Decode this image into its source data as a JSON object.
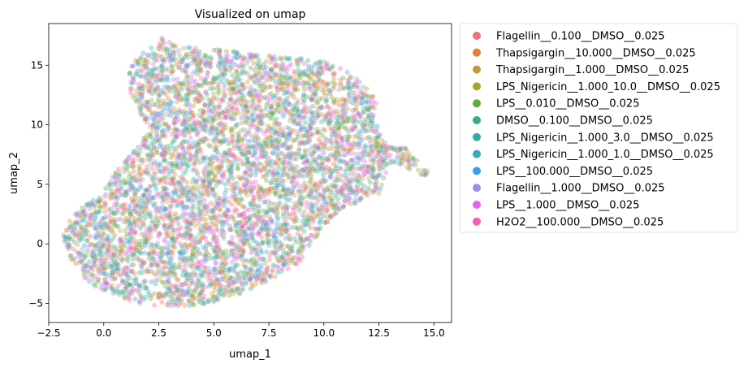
{
  "chart_data": {
    "type": "scatter",
    "title": "Visualized on umap",
    "xlabel": "umap_1",
    "ylabel": "umap_2",
    "xlim": [
      -2.5,
      15.8
    ],
    "ylim": [
      -6.6,
      18.5
    ],
    "xticks": [
      -2.5,
      0.0,
      2.5,
      5.0,
      7.5,
      10.0,
      12.5,
      15.0
    ],
    "xtick_labels": [
      "−2.5",
      "0.0",
      "2.5",
      "5.0",
      "7.5",
      "10.0",
      "12.5",
      "15.0"
    ],
    "yticks": [
      -5,
      0,
      5,
      10,
      15
    ],
    "ytick_labels": [
      "−5",
      "0",
      "5",
      "10",
      "15"
    ],
    "grid": false,
    "legend_position": "outside-right",
    "point_opacity": 0.35,
    "region_outline": [
      [
        -1.9,
        0.5
      ],
      [
        -1.6,
        2.0
      ],
      [
        -1.0,
        3.0
      ],
      [
        -0.2,
        4.3
      ],
      [
        0.3,
        5.5
      ],
      [
        1.0,
        7.0
      ],
      [
        1.6,
        8.5
      ],
      [
        2.2,
        9.6
      ],
      [
        1.8,
        10.5
      ],
      [
        1.2,
        12.5
      ],
      [
        1.0,
        14.4
      ],
      [
        1.5,
        15.8
      ],
      [
        2.3,
        16.6
      ],
      [
        2.6,
        17.4
      ],
      [
        3.2,
        16.8
      ],
      [
        5.0,
        16.4
      ],
      [
        7.0,
        16.0
      ],
      [
        8.5,
        15.6
      ],
      [
        9.6,
        15.6
      ],
      [
        10.8,
        14.8
      ],
      [
        11.8,
        13.5
      ],
      [
        12.4,
        12.0
      ],
      [
        12.3,
        10.5
      ],
      [
        12.6,
        9.0
      ],
      [
        13.0,
        8.3
      ],
      [
        13.8,
        8.0
      ],
      [
        14.3,
        7.0
      ],
      [
        14.8,
        6.2
      ],
      [
        14.6,
        5.7
      ],
      [
        13.8,
        6.3
      ],
      [
        12.9,
        6.8
      ],
      [
        12.8,
        5.5
      ],
      [
        12.5,
        4.2
      ],
      [
        11.8,
        3.6
      ],
      [
        10.8,
        3.0
      ],
      [
        10.0,
        1.5
      ],
      [
        9.5,
        0.0
      ],
      [
        8.9,
        -1.5
      ],
      [
        8.0,
        -2.6
      ],
      [
        7.0,
        -3.5
      ],
      [
        6.0,
        -4.3
      ],
      [
        4.5,
        -5.1
      ],
      [
        3.0,
        -5.3
      ],
      [
        1.5,
        -5.0
      ],
      [
        0.0,
        -4.0
      ],
      [
        -0.8,
        -3.0
      ],
      [
        -1.5,
        -1.5
      ],
      [
        -1.9,
        0.5
      ]
    ],
    "series": [
      {
        "name": "Flagellin__0.100__DMSO__0.025",
        "color": "#f0717e"
      },
      {
        "name": "Thapsigargin__10.000__DMSO__0.025",
        "color": "#e07f3a"
      },
      {
        "name": "Thapsigargin__1.000__DMSO__0.025",
        "color": "#c59a34"
      },
      {
        "name": "LPS_Nigericin__1.000_10.0__DMSO__0.025",
        "color": "#a2a734"
      },
      {
        "name": "LPS__0.010__DMSO__0.025",
        "color": "#5cb036"
      },
      {
        "name": "DMSO__0.100__DMSO__0.025",
        "color": "#37ac8b"
      },
      {
        "name": "LPS_Nigericin__1.000_3.0__DMSO__0.025",
        "color": "#37aaa2"
      },
      {
        "name": "LPS_Nigericin__1.000_1.0__DMSO__0.025",
        "color": "#38a8c1"
      },
      {
        "name": "LPS__100.000__DMSO__0.025",
        "color": "#3c9fe9"
      },
      {
        "name": "Flagellin__1.000__DMSO__0.025",
        "color": "#a48ce8"
      },
      {
        "name": "LPS__1.000__DMSO__0.025",
        "color": "#ea62e6"
      },
      {
        "name": "H2O2__100.000__DMSO__0.025",
        "color": "#f25fb6"
      }
    ]
  }
}
